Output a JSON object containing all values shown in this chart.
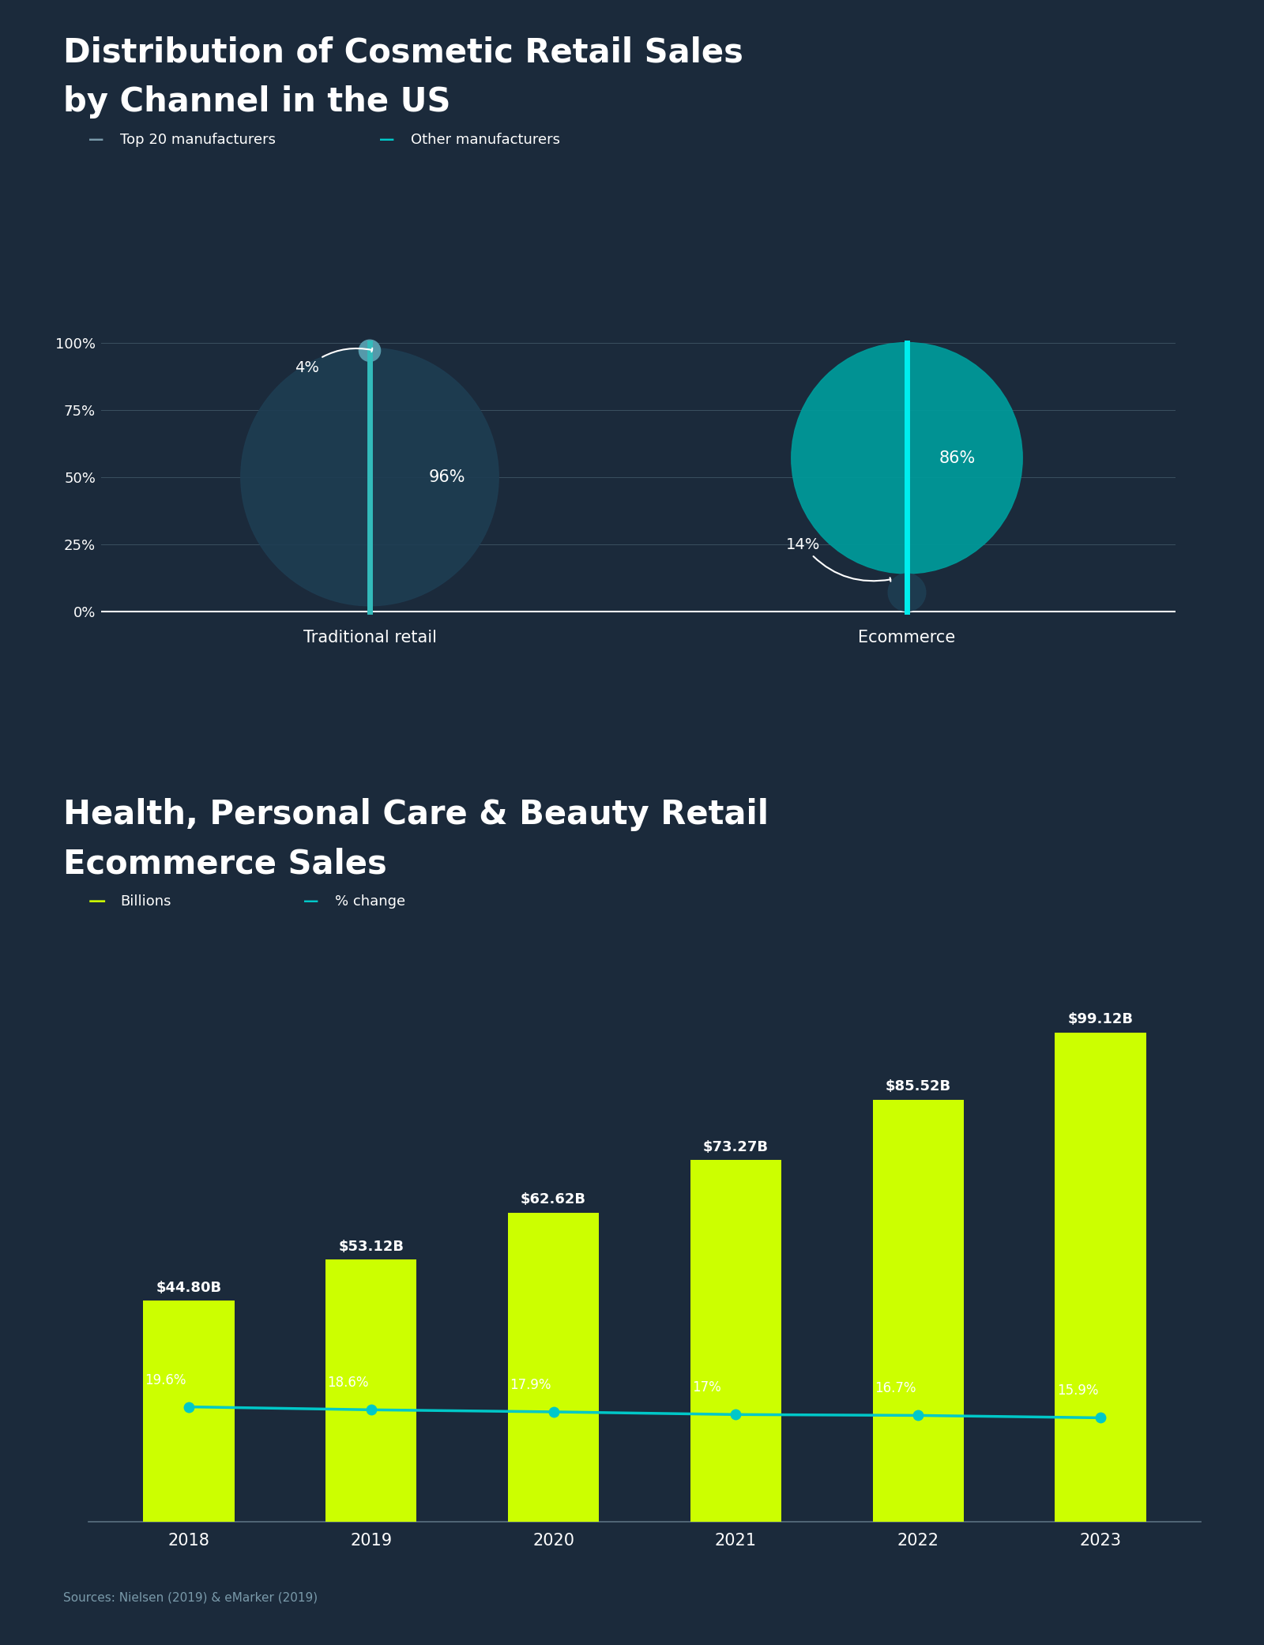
{
  "bg_color": "#1b2a3b",
  "title1_line1": "Distribution of Cosmetic Retail Sales",
  "title1_line2": "by Channel in the US",
  "title2_line1": "Health, Personal Care & Beauty Retail",
  "title2_line2": "Ecommerce Sales",
  "legend1": [
    "Top 20 manufacturers",
    "Other manufacturers"
  ],
  "legend1_colors": [
    "#7a9aaa",
    "#00c8c8"
  ],
  "chart1_categories": [
    "Traditional retail",
    "Ecommerce"
  ],
  "chart1_top20_color": "#243d52",
  "chart1_other_color": "#009999",
  "bar_years": [
    "2018",
    "2019",
    "2020",
    "2021",
    "2022",
    "2023"
  ],
  "bar_values": [
    44.8,
    53.12,
    62.62,
    73.27,
    85.52,
    99.12
  ],
  "bar_labels": [
    "$44.80B",
    "$53.12B",
    "$62.62B",
    "$73.27B",
    "$85.52B",
    "$99.12B"
  ],
  "bar_color": "#ccff00",
  "line_values": [
    19.6,
    18.6,
    17.9,
    17.0,
    16.7,
    15.9
  ],
  "line_labels": [
    "19.6%",
    "18.6%",
    "17.9%",
    "17%",
    "16.7%",
    "15.9%"
  ],
  "line_color": "#00c8c8",
  "legend2": [
    "Billions",
    "% change"
  ],
  "source_text": "Sources: Nielsen (2019) & eMarker (2019)",
  "white": "#ffffff",
  "gray": "#8899aa",
  "cyan_bar": "#00e8e8",
  "trad_bar_color": "#3399aa",
  "ecom_bar_color": "#00dddd"
}
